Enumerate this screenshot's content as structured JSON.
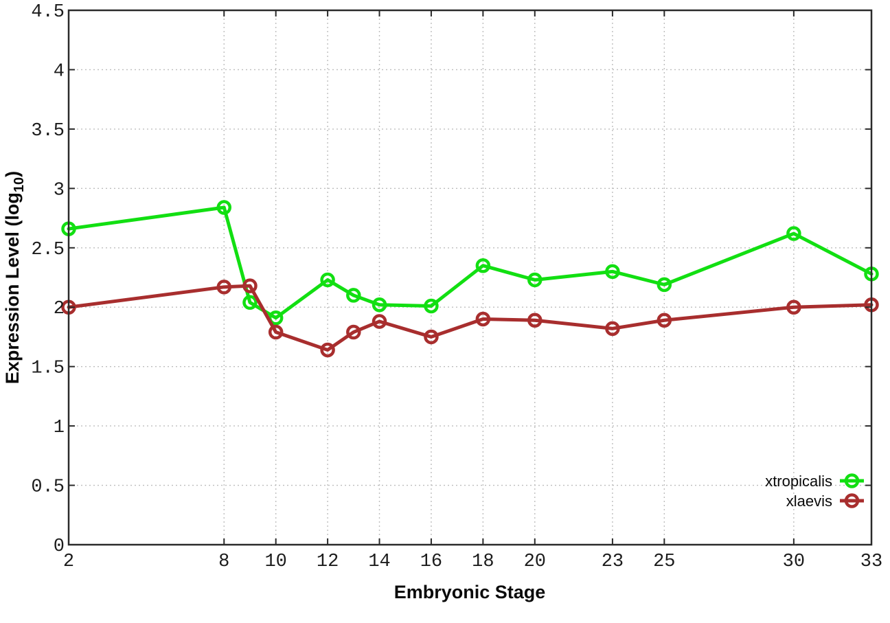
{
  "chart_data": {
    "type": "line",
    "title": "",
    "xlabel": "Embryonic Stage",
    "ylabel": "Expression Level (log10)",
    "ylabel_parts": {
      "base": "Expression Level (log",
      "sub": "10",
      "end": ")"
    },
    "xlim": [
      2,
      33
    ],
    "ylim": [
      0,
      4.5
    ],
    "xticks": [
      2,
      8,
      10,
      12,
      14,
      16,
      18,
      20,
      23,
      25,
      30,
      33
    ],
    "yticks": [
      0,
      0.5,
      1,
      1.5,
      2,
      2.5,
      3,
      3.5,
      4,
      4.5
    ],
    "grid": true,
    "legend_position": "inside-bottom-right",
    "x": [
      2,
      8,
      9,
      10,
      12,
      13,
      14,
      16,
      18,
      20,
      23,
      25,
      30,
      33
    ],
    "series": [
      {
        "name": "xtropicalis",
        "color": "#12df12",
        "values": [
          2.66,
          2.84,
          2.04,
          1.91,
          2.23,
          2.1,
          2.02,
          2.01,
          2.35,
          2.23,
          2.3,
          2.19,
          2.62,
          2.28
        ]
      },
      {
        "name": "xlaevis",
        "color": "#a82e2e",
        "values": [
          2.0,
          2.17,
          2.18,
          1.79,
          1.64,
          1.79,
          1.88,
          1.75,
          1.9,
          1.89,
          1.82,
          1.89,
          2.0,
          2.02
        ]
      }
    ],
    "colors": {
      "background": "#ffffff",
      "border": "#2a2a2a",
      "grid": "#bdbdbd",
      "tick_text": "#1c1c1c"
    }
  }
}
